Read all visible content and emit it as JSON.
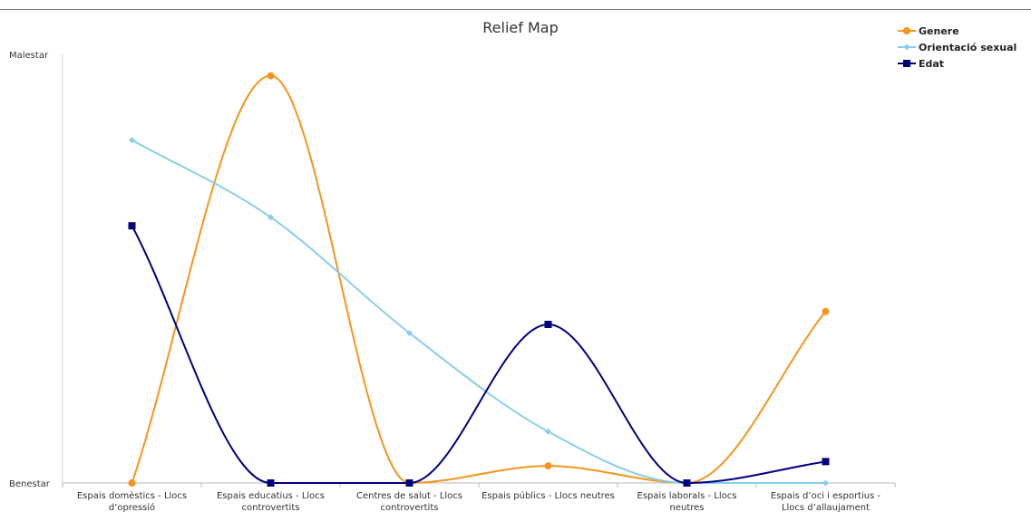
{
  "chart_data": {
    "type": "line",
    "title": "Relief Map",
    "xlabel": "",
    "ylabel": "",
    "y_tick_labels": [
      "Benestar",
      "Malestar"
    ],
    "ylim": [
      0,
      100
    ],
    "categories": [
      [
        "Espais domèstics - Llocs",
        "d’opressió"
      ],
      [
        "Espais educatius - Llocs",
        "controvertits"
      ],
      [
        "Centres de salut - Llocs",
        "controvertits"
      ],
      [
        "Espais públics - Llocs neutres"
      ],
      [
        "Espais laborals - Llocs",
        "neutres"
      ],
      [
        "Espais d’oci i esportius -",
        "Llocs d’allaujament"
      ]
    ],
    "series": [
      {
        "name": "Genere",
        "color": "#f7941d",
        "marker": "circle",
        "values": [
          0,
          95,
          0,
          4,
          0,
          40
        ]
      },
      {
        "name": "Orientació sexual",
        "color": "#87ceeb",
        "marker": "diamond",
        "values": [
          80,
          62,
          35,
          12,
          0,
          0
        ]
      },
      {
        "name": "Edat",
        "color": "#00007f",
        "marker": "square",
        "values": [
          60,
          0,
          0,
          37,
          0,
          5
        ]
      }
    ],
    "legend_position": "top-right",
    "smooth": true,
    "grid": false
  }
}
